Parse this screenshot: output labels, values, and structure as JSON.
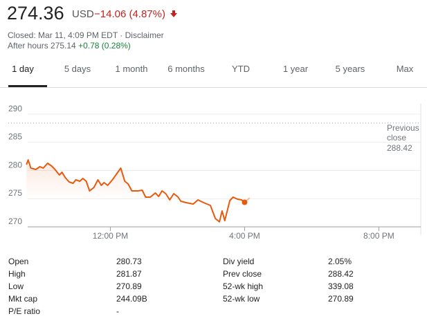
{
  "header": {
    "price": "274.36",
    "currency": "USD",
    "change": "−14.06 (4.87%)",
    "closed": "Closed: Mar 11, 4:09 PM EDT · ",
    "disclaimer": "Disclaimer",
    "after_hours": "After hours 275.14",
    "after_hours_change": "+0.78 (0.28%)"
  },
  "tabs": [
    "1 day",
    "5 days",
    "1 month",
    "6 months",
    "YTD",
    "1 year",
    "5 years",
    "Max"
  ],
  "chart_data": {
    "type": "line",
    "xlim": [
      9,
      21.25
    ],
    "xticks": [
      {
        "value": 12,
        "label": "12:00 PM"
      },
      {
        "value": 16,
        "label": "4:00 PM"
      },
      {
        "value": 20,
        "label": "8:00 PM"
      }
    ],
    "ylim": [
      270,
      291.2
    ],
    "yticks": [
      270,
      275,
      280,
      285,
      290
    ],
    "grid": true,
    "reference_line": {
      "label": "Previous close",
      "value": 288.42
    },
    "series": [
      {
        "color": "#e8590c",
        "x": [
          9.5,
          9.55,
          9.63,
          9.78,
          9.9,
          10.0,
          10.13,
          10.25,
          10.35,
          10.48,
          10.56,
          10.66,
          10.77,
          10.89,
          10.97,
          11.09,
          11.18,
          11.28,
          11.38,
          11.51,
          11.63,
          11.73,
          11.81,
          11.92,
          12.06,
          12.31,
          12.43,
          12.53,
          12.64,
          12.82,
          12.95,
          13.05,
          13.19,
          13.34,
          13.44,
          13.54,
          13.65,
          13.77,
          13.89,
          14.02,
          14.1,
          14.26,
          14.47,
          14.61,
          14.78,
          14.98,
          15.13,
          15.25,
          15.33,
          15.41,
          15.56,
          15.66,
          15.79,
          15.91,
          16.0
        ],
        "values": [
          281.04,
          281.87,
          280.43,
          280.18,
          280.67,
          280.43,
          281.29,
          280.8,
          280.18,
          279.2,
          279.69,
          278.71,
          277.98,
          277.73,
          278.34,
          278.1,
          278.59,
          278.1,
          276.38,
          276.99,
          278.34,
          277.36,
          277.85,
          277.36,
          278.34,
          280.43,
          278.1,
          277.61,
          276.38,
          276.38,
          276.5,
          275.28,
          275.28,
          276.01,
          275.4,
          276.38,
          275.89,
          274.79,
          275.89,
          275.28,
          274.54,
          274.29,
          274.05,
          274.79,
          274.29,
          273.8,
          271.47,
          270.89,
          272.82,
          271.1,
          274.66,
          275.28,
          274.91,
          274.79,
          274.36
        ]
      },
      {
        "color": "#f5b896",
        "x": [
          16.0,
          16.15
        ],
        "values": [
          274.36,
          275.14
        ]
      }
    ]
  },
  "stats": {
    "left": [
      [
        "Open",
        "280.73"
      ],
      [
        "High",
        "281.87"
      ],
      [
        "Low",
        "270.89"
      ],
      [
        "Mkt cap",
        "244.09B"
      ],
      [
        "P/E ratio",
        "-"
      ]
    ],
    "right": [
      [
        "Div yield",
        "2.05%"
      ],
      [
        "Prev close",
        "288.42"
      ],
      [
        "52-wk high",
        "339.08"
      ],
      [
        "52-wk low",
        "270.89"
      ]
    ]
  }
}
